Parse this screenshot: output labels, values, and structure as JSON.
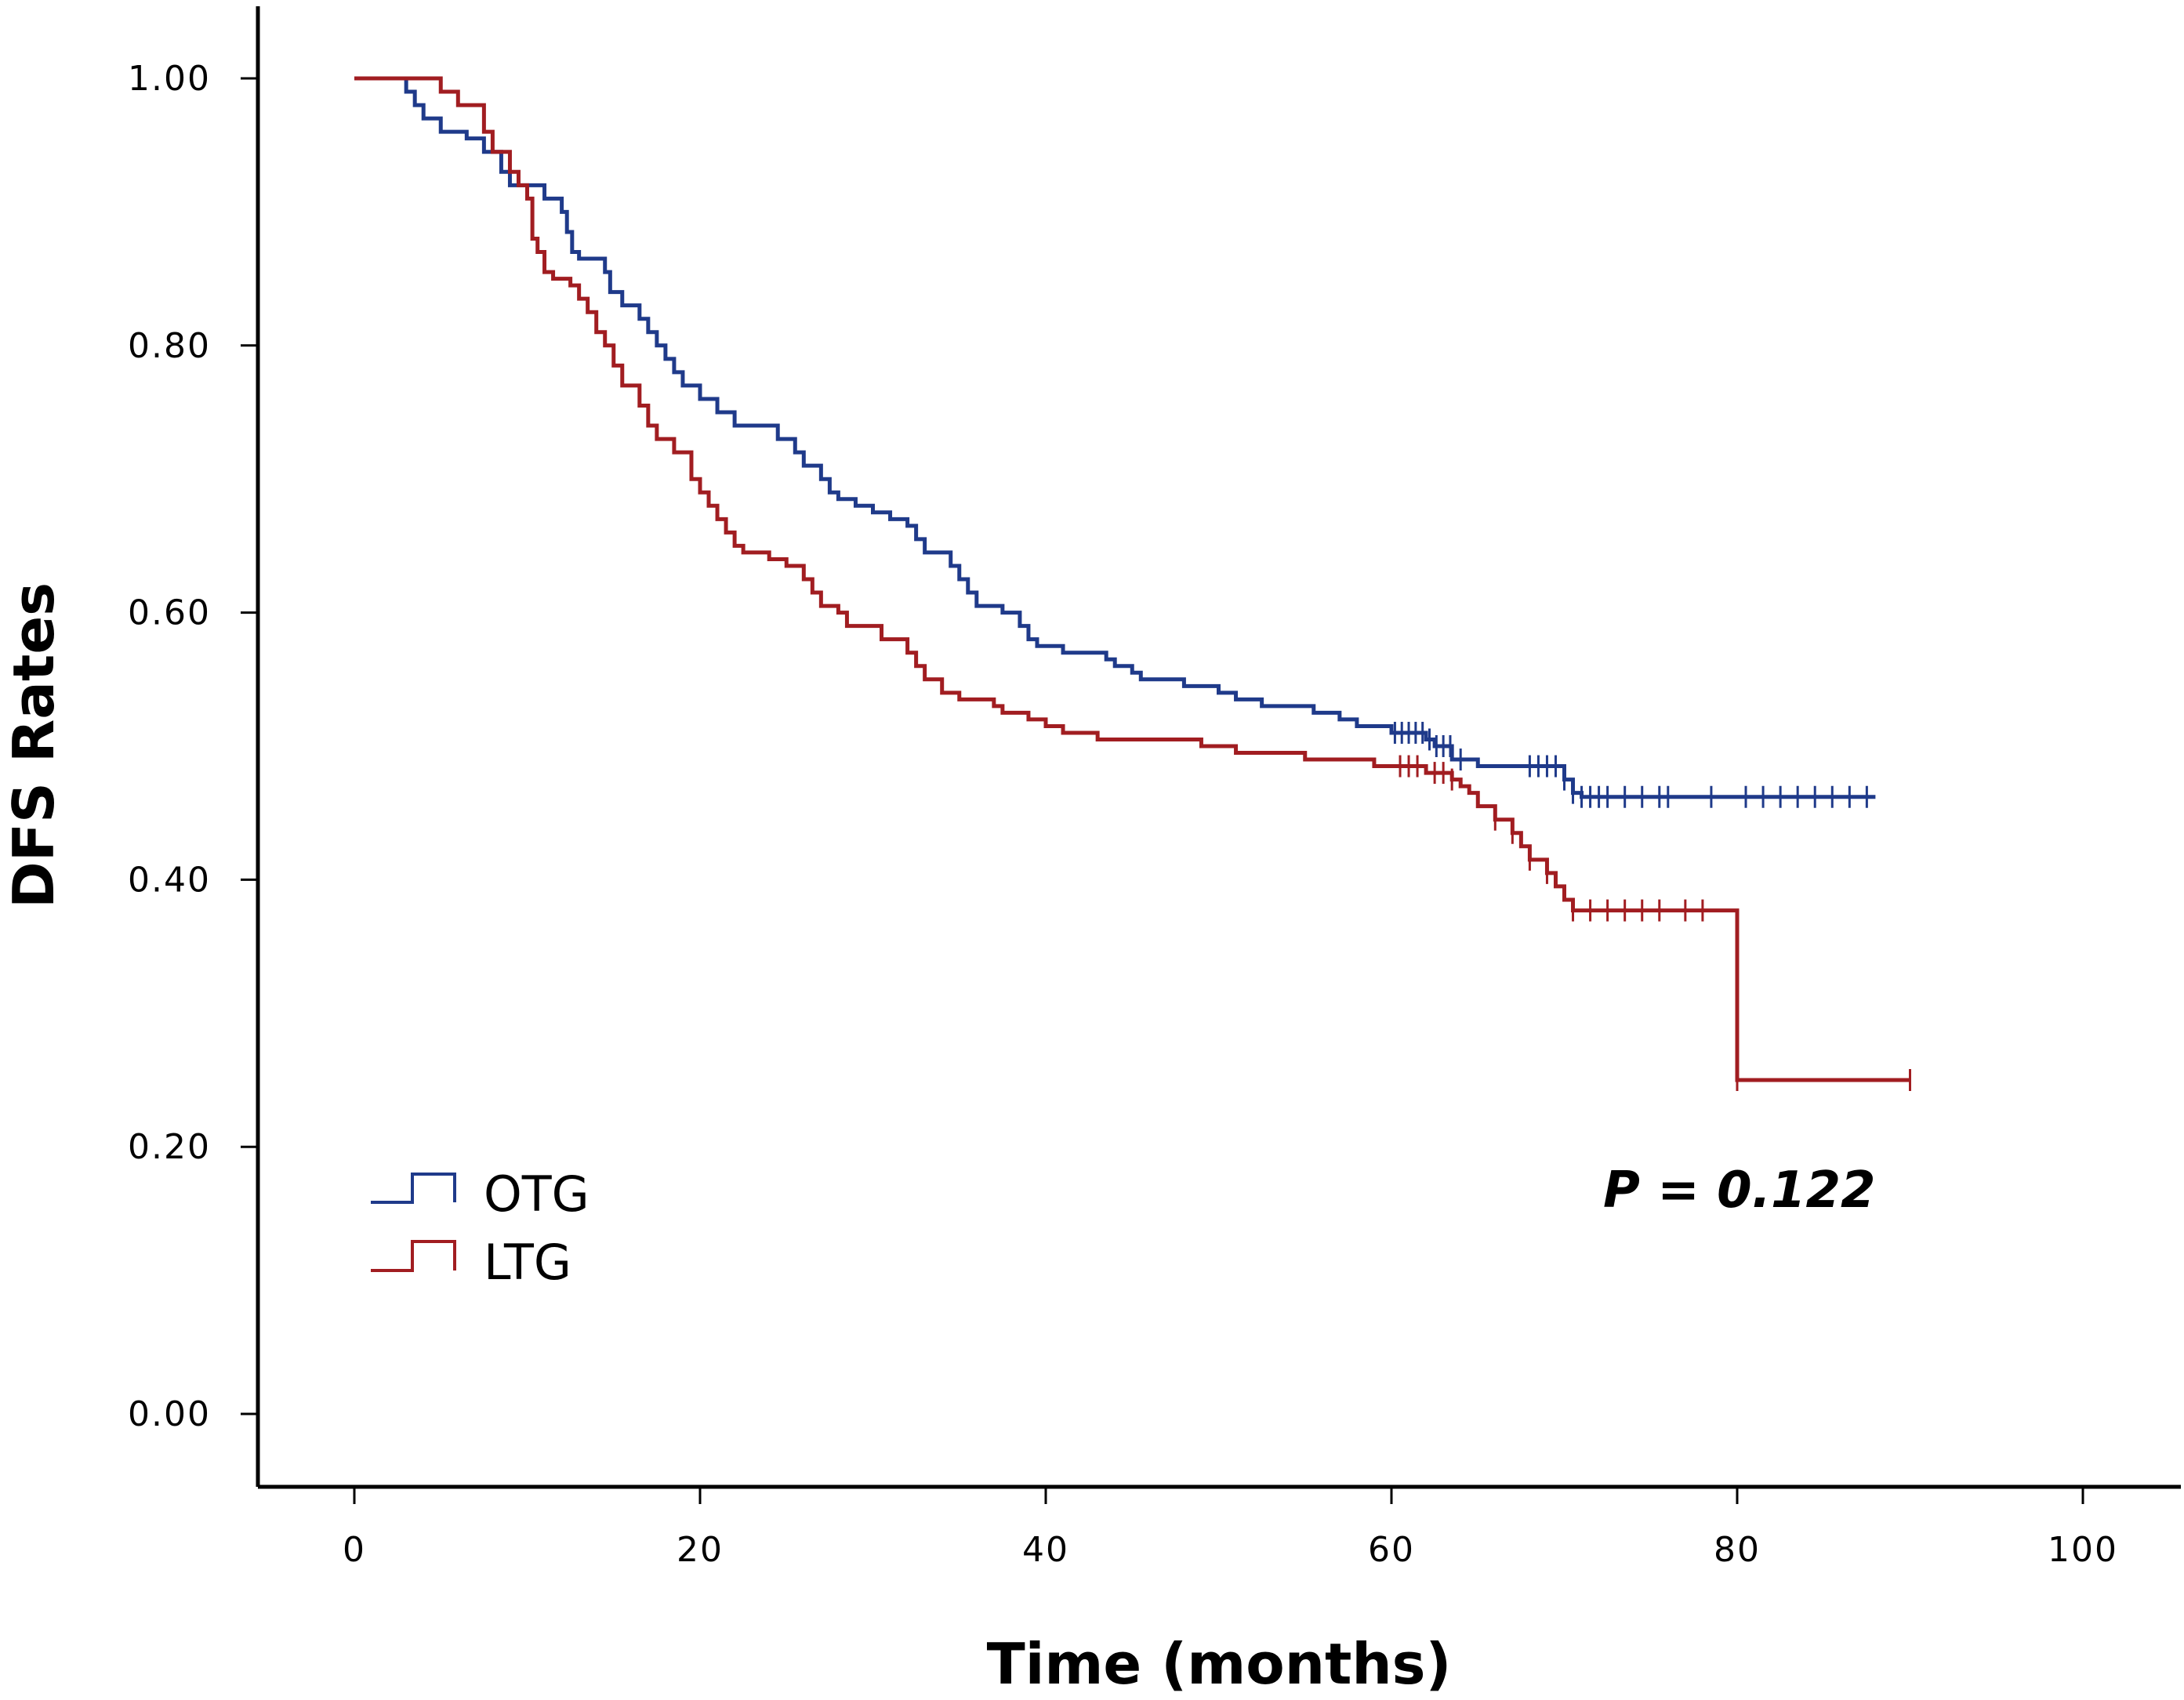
{
  "chart_data": {
    "type": "line",
    "subtype": "kaplan-meier",
    "title": "",
    "xlabel": "Time (months)",
    "ylabel": "DFS Rates",
    "xlim": [
      -5,
      105
    ],
    "ylim": [
      -0.1,
      1.05
    ],
    "xticks": [
      0,
      20,
      40,
      60,
      80,
      100
    ],
    "xtick_labels": [
      "0",
      "20",
      "40",
      "60",
      "80",
      "100"
    ],
    "yticks": [
      0,
      0.2,
      0.4,
      0.6,
      0.8,
      1.0
    ],
    "ytick_labels": [
      "0.00",
      "0.20",
      "0.40",
      "0.60",
      "0.80",
      "1.00"
    ],
    "legend": {
      "position": "bottom-left"
    },
    "annotation": "P = 0.122",
    "series": [
      {
        "name": "OTG",
        "color": "#1f3a8a",
        "steps": [
          [
            0,
            1.0
          ],
          [
            3,
            0.99
          ],
          [
            3.5,
            0.98
          ],
          [
            4,
            0.97
          ],
          [
            5,
            0.96
          ],
          [
            6.5,
            0.955
          ],
          [
            7.5,
            0.945
          ],
          [
            8.5,
            0.93
          ],
          [
            9,
            0.92
          ],
          [
            11,
            0.91
          ],
          [
            12,
            0.9
          ],
          [
            12.3,
            0.885
          ],
          [
            12.6,
            0.87
          ],
          [
            13,
            0.865
          ],
          [
            14.5,
            0.855
          ],
          [
            14.8,
            0.84
          ],
          [
            15.5,
            0.83
          ],
          [
            16.5,
            0.82
          ],
          [
            17,
            0.81
          ],
          [
            17.5,
            0.8
          ],
          [
            18,
            0.79
          ],
          [
            18.5,
            0.78
          ],
          [
            19,
            0.77
          ],
          [
            20,
            0.76
          ],
          [
            21,
            0.75
          ],
          [
            22,
            0.74
          ],
          [
            24.5,
            0.73
          ],
          [
            25.5,
            0.72
          ],
          [
            26,
            0.71
          ],
          [
            27,
            0.7
          ],
          [
            27.5,
            0.69
          ],
          [
            28,
            0.685
          ],
          [
            29,
            0.68
          ],
          [
            30,
            0.675
          ],
          [
            31,
            0.67
          ],
          [
            32,
            0.665
          ],
          [
            32.5,
            0.655
          ],
          [
            33,
            0.645
          ],
          [
            34.5,
            0.635
          ],
          [
            35,
            0.625
          ],
          [
            35.5,
            0.615
          ],
          [
            36,
            0.605
          ],
          [
            37.5,
            0.6
          ],
          [
            38.5,
            0.59
          ],
          [
            39,
            0.58
          ],
          [
            39.5,
            0.575
          ],
          [
            41,
            0.57
          ],
          [
            43.5,
            0.565
          ],
          [
            44,
            0.56
          ],
          [
            45,
            0.555
          ],
          [
            45.5,
            0.55
          ],
          [
            48,
            0.545
          ],
          [
            50,
            0.54
          ],
          [
            51,
            0.535
          ],
          [
            52.5,
            0.53
          ],
          [
            55.5,
            0.525
          ],
          [
            57,
            0.52
          ],
          [
            58,
            0.515
          ],
          [
            60,
            0.51
          ],
          [
            62,
            0.505
          ],
          [
            62.5,
            0.5
          ],
          [
            63.5,
            0.49
          ],
          [
            65,
            0.485
          ],
          [
            70,
            0.475
          ],
          [
            70.5,
            0.465
          ],
          [
            71,
            0.462
          ],
          [
            88,
            0.462
          ]
        ],
        "censored": [
          60.2,
          60.6,
          61,
          61.4,
          61.8,
          62.2,
          62.6,
          63,
          63.4,
          64,
          68,
          68.5,
          69,
          69.5,
          70,
          70.5,
          71,
          71.5,
          72,
          72.5,
          73.5,
          74.5,
          75.5,
          76,
          78.5,
          80.5,
          81.5,
          82.5,
          83.5,
          84.5,
          85.5,
          86.5,
          87.5
        ]
      },
      {
        "name": "LTG",
        "color": "#a11d21",
        "steps": [
          [
            0,
            1.0
          ],
          [
            5,
            0.99
          ],
          [
            6,
            0.98
          ],
          [
            7.5,
            0.96
          ],
          [
            8,
            0.945
          ],
          [
            9,
            0.93
          ],
          [
            9.5,
            0.92
          ],
          [
            10,
            0.91
          ],
          [
            10.3,
            0.88
          ],
          [
            10.6,
            0.87
          ],
          [
            11,
            0.855
          ],
          [
            11.5,
            0.85
          ],
          [
            12.5,
            0.845
          ],
          [
            13,
            0.835
          ],
          [
            13.5,
            0.825
          ],
          [
            14,
            0.81
          ],
          [
            14.5,
            0.8
          ],
          [
            15,
            0.785
          ],
          [
            15.5,
            0.77
          ],
          [
            16.5,
            0.755
          ],
          [
            17,
            0.74
          ],
          [
            17.5,
            0.73
          ],
          [
            18.5,
            0.72
          ],
          [
            19.5,
            0.7
          ],
          [
            20,
            0.69
          ],
          [
            20.5,
            0.68
          ],
          [
            21,
            0.67
          ],
          [
            21.5,
            0.66
          ],
          [
            22,
            0.65
          ],
          [
            22.5,
            0.645
          ],
          [
            24,
            0.64
          ],
          [
            25,
            0.635
          ],
          [
            26,
            0.625
          ],
          [
            26.5,
            0.615
          ],
          [
            27,
            0.605
          ],
          [
            28,
            0.6
          ],
          [
            28.5,
            0.59
          ],
          [
            30.5,
            0.58
          ],
          [
            32,
            0.57
          ],
          [
            32.5,
            0.56
          ],
          [
            33,
            0.55
          ],
          [
            34,
            0.54
          ],
          [
            35,
            0.535
          ],
          [
            37,
            0.53
          ],
          [
            37.5,
            0.525
          ],
          [
            39,
            0.52
          ],
          [
            40,
            0.515
          ],
          [
            41,
            0.51
          ],
          [
            43,
            0.505
          ],
          [
            49,
            0.5
          ],
          [
            51,
            0.495
          ],
          [
            55,
            0.49
          ],
          [
            59,
            0.485
          ],
          [
            62,
            0.48
          ],
          [
            63.5,
            0.475
          ],
          [
            64,
            0.47
          ],
          [
            64.5,
            0.465
          ],
          [
            65,
            0.455
          ],
          [
            66,
            0.445
          ],
          [
            67,
            0.435
          ],
          [
            67.5,
            0.425
          ],
          [
            68,
            0.415
          ],
          [
            69,
            0.405
          ],
          [
            69.5,
            0.395
          ],
          [
            70,
            0.385
          ],
          [
            70.5,
            0.377
          ],
          [
            80,
            0.25
          ],
          [
            90,
            0.25
          ]
        ],
        "censored": [
          60.5,
          61,
          61.5,
          62.5,
          63,
          63.5,
          66,
          67,
          68,
          69,
          70.5,
          71.5,
          72.5,
          73.5,
          74.5,
          75.5,
          77,
          78,
          80,
          90
        ]
      }
    ]
  }
}
